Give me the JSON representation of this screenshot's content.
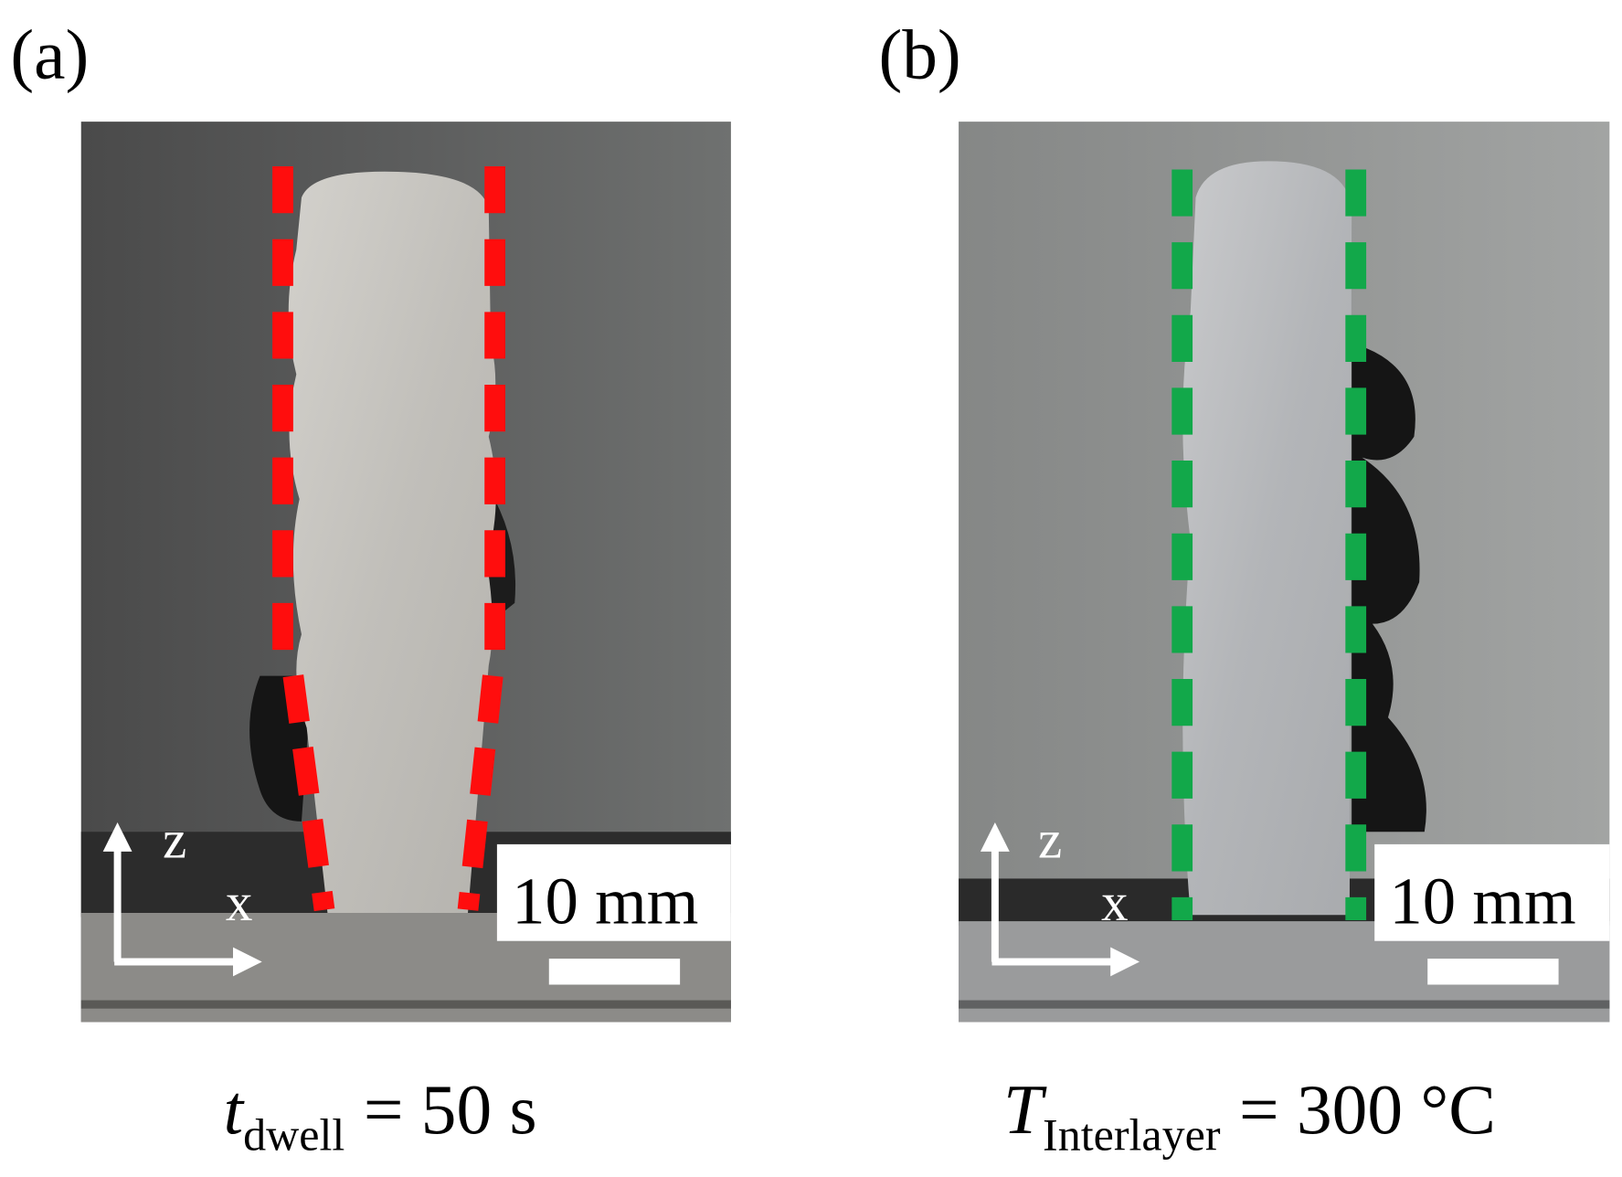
{
  "panels": [
    {
      "label": "(a)",
      "axis_z": "z",
      "axis_x": "x",
      "scale_bar": "10 mm",
      "caption": {
        "symbol": "t",
        "subscript": "dwell",
        "rest": "= 50 s"
      }
    },
    {
      "label": "(b)",
      "axis_z": "z",
      "axis_x": "x",
      "scale_bar": "10 mm",
      "caption": {
        "symbol": "T",
        "subscript": "Interlayer",
        "rest": "= 300 °C"
      }
    }
  ]
}
